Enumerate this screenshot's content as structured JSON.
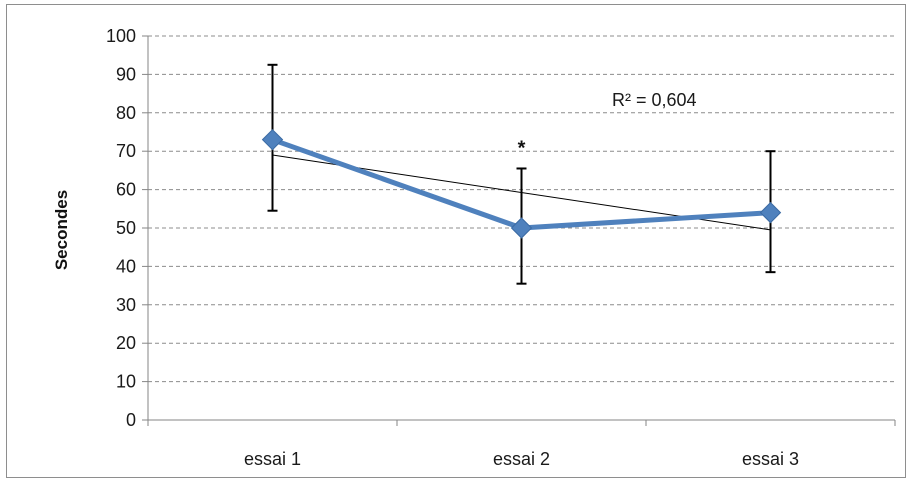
{
  "chart_data": {
    "type": "line",
    "categories": [
      "essai 1",
      "essai 2",
      "essai 3"
    ],
    "series": [
      {
        "values": [
          73,
          50,
          54
        ],
        "error_low": [
          54.5,
          35.5,
          38.5
        ],
        "error_high": [
          92.5,
          65.5,
          70
        ],
        "color": "#4f81bd",
        "marker": "diamond"
      }
    ],
    "trendline": {
      "type": "linear",
      "start": 69,
      "end": 49.5,
      "color": "#000000",
      "r2_label": "R² = 0,604"
    },
    "annotations": [
      {
        "text": "*",
        "category": "essai 2"
      }
    ],
    "title": "",
    "xlabel": "",
    "ylabel": "Secondes",
    "ylim": [
      0,
      100
    ],
    "yticks": [
      "0",
      "10",
      "20",
      "30",
      "40",
      "50",
      "60",
      "70",
      "80",
      "90",
      "100"
    ],
    "grid": "horizontal dashed",
    "legend": "none"
  }
}
